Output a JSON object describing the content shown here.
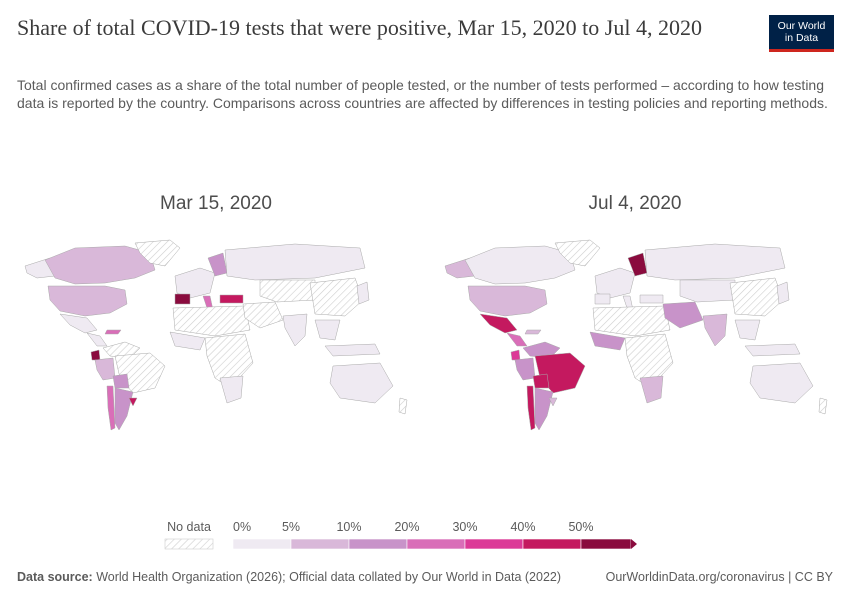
{
  "header": {
    "title": "Share of total COVID-19 tests that were positive, Mar 15, 2020 to Jul 4, 2020",
    "subtitle": "Total confirmed cases as a share of the total number of people tested, or the number of tests performed – according to how testing data is reported by the country. Comparisons across countries are affected by differences in testing policies and reporting methods."
  },
  "logo": {
    "line1": "Our World",
    "line2": "in Data"
  },
  "panels": [
    {
      "title": "Mar 15, 2020"
    },
    {
      "title": "Jul 4, 2020"
    }
  ],
  "legend": {
    "no_data_label": "No data",
    "ticks": [
      "0%",
      "5%",
      "10%",
      "20%",
      "30%",
      "40%",
      "50%"
    ],
    "colors": [
      "#efeaf2",
      "#d9b8d9",
      "#c893c9",
      "#d96eb8",
      "#dc3a97",
      "#c4195f",
      "#8a0b3e"
    ]
  },
  "footer": {
    "source_label": "Data source:",
    "source_text": " World Health Organization (2026); Official data collated by Our World in Data (2022)",
    "url_license": "OurWorldinData.org/coronavirus | CC BY"
  },
  "colors": {
    "no_data_hatch": "#d4d4d4",
    "border": "#9e9e9e"
  }
}
